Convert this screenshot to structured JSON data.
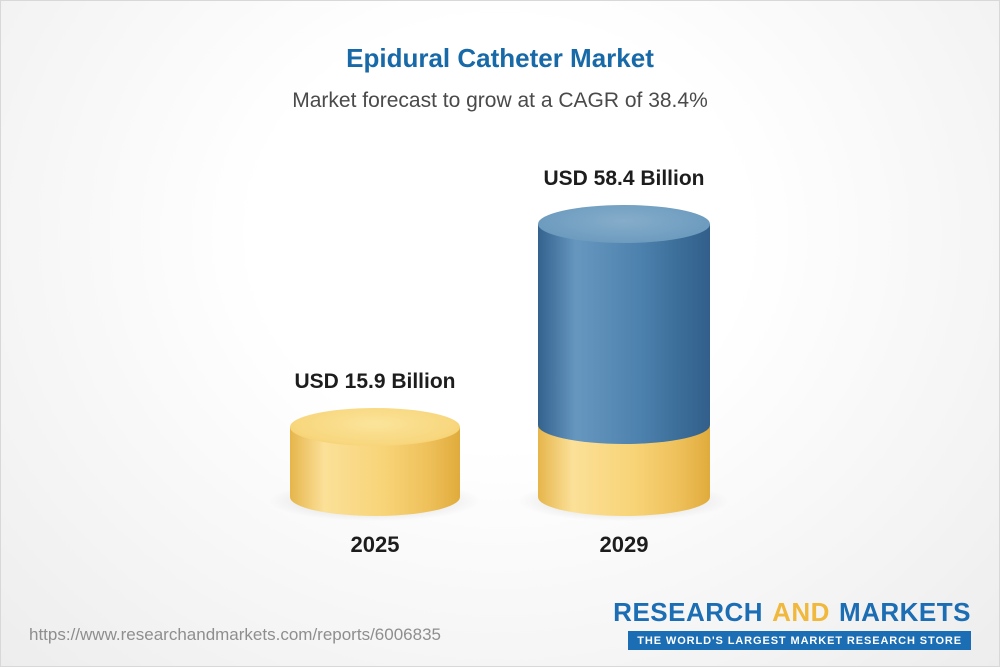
{
  "header": {
    "title": "Epidural Catheter Market",
    "subtitle": "Market forecast to grow at a CAGR of 38.4%"
  },
  "chart_data": {
    "type": "bar",
    "title": "Epidural Catheter Market",
    "subtitle": "Market forecast to grow at a CAGR of 38.4%",
    "categories": [
      "2025",
      "2029"
    ],
    "values": [
      15.9,
      58.4
    ],
    "unit": "USD Billion",
    "value_labels": [
      "USD 15.9 Billion",
      "USD 58.4 Billion"
    ],
    "cagr_percent": 38.4,
    "legend_position": "none",
    "grid": false,
    "colors": {
      "bar_2025": "#f6cf6d",
      "bar_2029": "#4a7dab",
      "bar_2029_base_segment": "#f2c75f",
      "title_text": "#1769a8"
    }
  },
  "footer": {
    "url": "https://www.researchandmarkets.com/reports/6006835",
    "logo": {
      "word1": "RESEARCH",
      "word2": "AND",
      "word3": "MARKETS",
      "tagline": "THE WORLD'S LARGEST MARKET RESEARCH STORE"
    }
  }
}
